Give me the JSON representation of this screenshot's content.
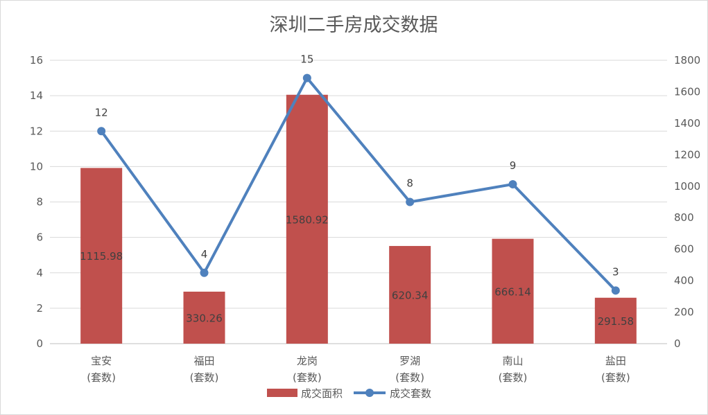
{
  "chart_data": {
    "type": "bar+line",
    "title": "深圳二手房成交数据",
    "categories": [
      [
        "宝安",
        "(套数)"
      ],
      [
        "福田",
        "(套数)"
      ],
      [
        "龙岗",
        "(套数)"
      ],
      [
        "罗湖",
        "(套数)"
      ],
      [
        "南山",
        "(套数)"
      ],
      [
        "盐田",
        "(套数)"
      ]
    ],
    "series": [
      {
        "name": "成交面积",
        "type": "bar",
        "axis": "right",
        "color": "#c0504d",
        "values": [
          1115.98,
          330.26,
          1580.92,
          620.34,
          666.14,
          291.58
        ],
        "labels": [
          "1115.98",
          "330.26",
          "1580.92",
          "620.34",
          "666.14",
          "291.58"
        ]
      },
      {
        "name": "成交套数",
        "type": "line",
        "axis": "left",
        "color": "#4f81bd",
        "values": [
          12,
          4,
          15,
          8,
          9,
          3
        ],
        "labels": [
          "12",
          "4",
          "15",
          "8",
          "9",
          "3"
        ]
      }
    ],
    "y_left": {
      "min": 0,
      "max": 16,
      "ticks": [
        "0",
        "2",
        "4",
        "6",
        "8",
        "10",
        "12",
        "14",
        "16"
      ]
    },
    "y_right": {
      "min": 0,
      "max": 1800,
      "ticks": [
        "0",
        "200",
        "400",
        "600",
        "800",
        "1000",
        "1200",
        "1400",
        "1600",
        "1800"
      ]
    },
    "grid": true,
    "legend_position": "bottom"
  }
}
